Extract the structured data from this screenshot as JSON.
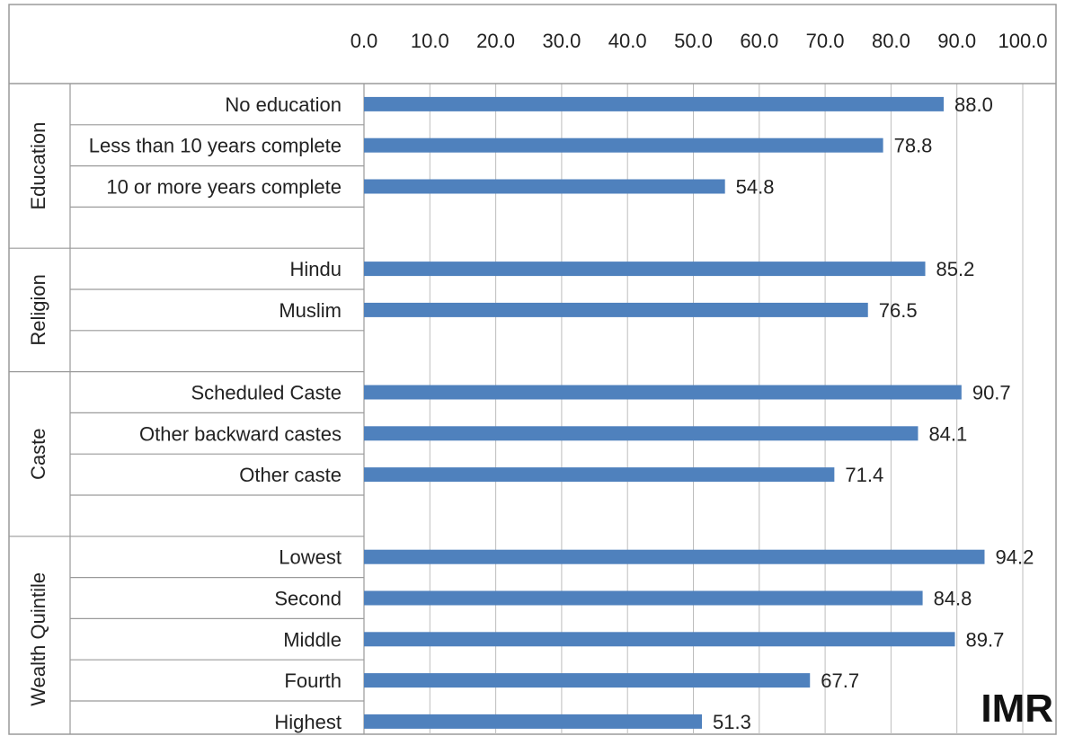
{
  "chart_data": {
    "type": "bar",
    "orientation": "horizontal",
    "grid": true,
    "xlim": [
      0,
      100
    ],
    "ticks": [
      "0.0",
      "10.0",
      "20.0",
      "30.0",
      "40.0",
      "50.0",
      "60.0",
      "70.0",
      "80.0",
      "90.0",
      "100.0"
    ],
    "bar_color": "#4F81BD",
    "annotation": "IMR",
    "groups": [
      {
        "label": "Education",
        "items": [
          {
            "label": "No education",
            "value": 88.0,
            "value_label": "88.0"
          },
          {
            "label": "Less than 10 years complete",
            "value": 78.8,
            "value_label": "78.8"
          },
          {
            "label": "10 or more years complete",
            "value": 54.8,
            "value_label": "54.8"
          }
        ]
      },
      {
        "label": "Religion",
        "items": [
          {
            "label": "Hindu",
            "value": 85.2,
            "value_label": "85.2"
          },
          {
            "label": "Muslim",
            "value": 76.5,
            "value_label": "76.5"
          }
        ]
      },
      {
        "label": "Caste",
        "items": [
          {
            "label": "Scheduled Caste",
            "value": 90.7,
            "value_label": "90.7"
          },
          {
            "label": "Other backward castes",
            "value": 84.1,
            "value_label": "84.1"
          },
          {
            "label": "Other caste",
            "value": 71.4,
            "value_label": "71.4"
          }
        ]
      },
      {
        "label": "Wealth Quintile",
        "items": [
          {
            "label": "Lowest",
            "value": 94.2,
            "value_label": "94.2"
          },
          {
            "label": "Second",
            "value": 84.8,
            "value_label": "84.8"
          },
          {
            "label": "Middle",
            "value": 89.7,
            "value_label": "89.7"
          },
          {
            "label": "Fourth",
            "value": 67.7,
            "value_label": "67.7"
          },
          {
            "label": "Highest",
            "value": 51.3,
            "value_label": "51.3"
          }
        ]
      }
    ]
  }
}
